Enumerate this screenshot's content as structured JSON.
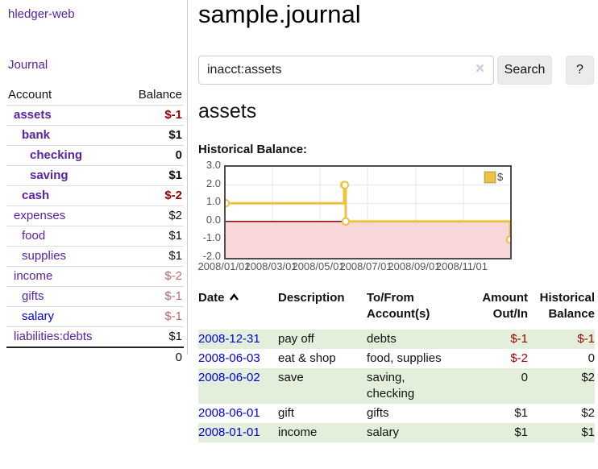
{
  "brand": "hledger-web",
  "nav": {
    "journal_label": "Journal"
  },
  "sidebar": {
    "header": {
      "account": "Account",
      "balance": "Balance"
    },
    "accounts": [
      {
        "name": "assets",
        "balance": "$-1"
      },
      {
        "name": "bank",
        "balance": "$1"
      },
      {
        "name": "checking",
        "balance": "0"
      },
      {
        "name": "saving",
        "balance": "$1"
      },
      {
        "name": "cash",
        "balance": "$-2"
      },
      {
        "name": "expenses",
        "balance": "$2"
      },
      {
        "name": "food",
        "balance": "$1"
      },
      {
        "name": "supplies",
        "balance": "$1"
      },
      {
        "name": "income",
        "balance": "$-2"
      },
      {
        "name": "gifts",
        "balance": "$-1"
      },
      {
        "name": "salary",
        "balance": "$-1"
      },
      {
        "name": "liabilities:debts",
        "balance": "$1"
      }
    ],
    "total": "0"
  },
  "header": {
    "title": "sample.journal"
  },
  "search": {
    "value": "inacct:assets",
    "clear_icon": "×",
    "button_label": "Search",
    "help_label": "?"
  },
  "account_page": {
    "heading": "assets",
    "chart_title": "Historical Balance:"
  },
  "chart_data": {
    "type": "line",
    "steps": true,
    "title": "Historical Balance:",
    "series": [
      {
        "name": "$",
        "color": "#edc240",
        "points": [
          [
            "2008-01-01",
            1
          ],
          [
            "2008-06-01",
            2
          ],
          [
            "2008-06-02",
            2
          ],
          [
            "2008-06-03",
            0
          ],
          [
            "2008-12-31",
            -1
          ]
        ]
      }
    ],
    "xlim": [
      "2008-01-01",
      "2008-12-31"
    ],
    "ylim": [
      -2,
      3
    ],
    "x_ticks": [
      "2008/01/01",
      "2008/03/01",
      "2008/05/01",
      "2008/07/01",
      "2008/09/01",
      "2008/11/01"
    ],
    "y_ticks": [
      3.0,
      2.0,
      1.0,
      0.0,
      -1.0,
      -2.0
    ],
    "grid": true,
    "legend_position": "top-right",
    "negative_fill": "#f8d7d9",
    "zero_line_color": "#8b0000"
  },
  "register": {
    "columns": {
      "date": "Date",
      "description": "Description",
      "tofrom": "To/From Account(s)",
      "amount": "Amount Out/In",
      "balance": "Historical Balance"
    },
    "rows": [
      {
        "date": "2008-12-31",
        "description": "pay off",
        "accounts": "debts",
        "amount": "$-1",
        "balance": "$-1"
      },
      {
        "date": "2008-06-03",
        "description": "eat & shop",
        "accounts": "food, supplies",
        "amount": "$-2",
        "balance": "0"
      },
      {
        "date": "2008-06-02",
        "description": "save",
        "accounts": "saving, checking",
        "amount": "0",
        "balance": "$2"
      },
      {
        "date": "2008-06-01",
        "description": "gift",
        "accounts": "gifts",
        "amount": "$1",
        "balance": "$2"
      },
      {
        "date": "2008-01-01",
        "description": "income",
        "accounts": "salary",
        "amount": "$1",
        "balance": "$1"
      }
    ]
  },
  "colors": {
    "link_purple": "#5b21a0",
    "link_blue": "#0000dd",
    "negative_strong": "#990000",
    "negative_soft": "#bd6a6a",
    "row_stripe_green": "#e3efdb",
    "series_gold": "#edc240",
    "negative_region_pink": "#f8d7d9",
    "zero_line_red": "#8b0000",
    "plot_border": "#4d4d4d"
  }
}
